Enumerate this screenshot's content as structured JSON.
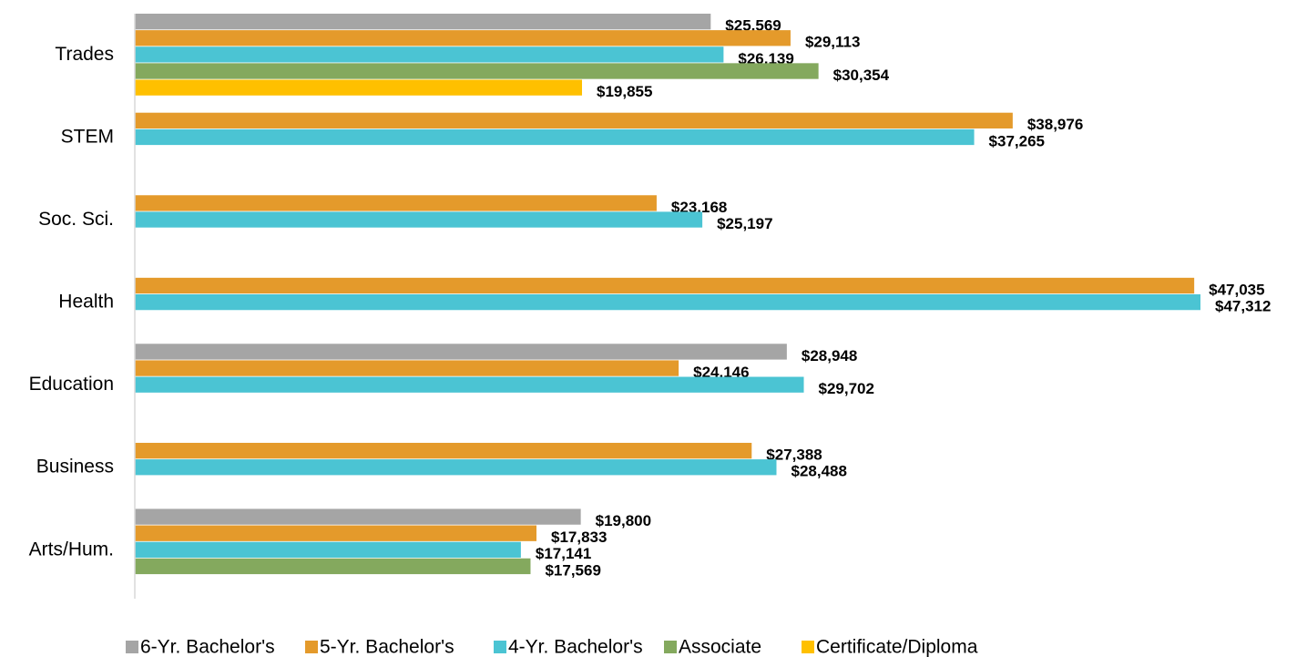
{
  "chart_data": {
    "type": "bar",
    "orientation": "horizontal",
    "categories": [
      "Trades",
      "STEM",
      "Soc. Sci.",
      "Health",
      "Education",
      "Business",
      "Arts/Hum."
    ],
    "series": [
      {
        "name": "6-Yr. Bachelor's",
        "color": "#a5a5a5",
        "values": [
          25569,
          null,
          null,
          null,
          28948,
          null,
          19800
        ],
        "value_labels": [
          "$25,569",
          null,
          null,
          null,
          "$28,948",
          null,
          "$19,800"
        ]
      },
      {
        "name": "5-Yr. Bachelor's",
        "color": "#e49a2b",
        "values": [
          29113,
          38976,
          23168,
          47035,
          24146,
          27388,
          17833
        ],
        "value_labels": [
          "$29,113",
          "$38,976",
          "$23,168",
          "$47,035",
          "$24,146",
          "$27,388",
          "$17,833"
        ]
      },
      {
        "name": "4-Yr. Bachelor's",
        "color": "#4bc4d3",
        "values": [
          26139,
          37265,
          25197,
          47312,
          29702,
          28488,
          17141
        ],
        "value_labels": [
          "$26,139",
          "$37,265",
          "$25,197",
          "$47,312",
          "$29,702",
          "$28,488",
          "$17,141"
        ]
      },
      {
        "name": "Associate",
        "color": "#84a95e",
        "values": [
          30354,
          null,
          null,
          null,
          null,
          null,
          17569
        ],
        "value_labels": [
          "$30,354",
          null,
          null,
          null,
          null,
          null,
          "$17,569"
        ]
      },
      {
        "name": "Certificate/Diploma",
        "color": "#ffc000",
        "values": [
          19855,
          null,
          null,
          null,
          null,
          null,
          null
        ],
        "value_labels": [
          "$19,855",
          null,
          null,
          null,
          null,
          null,
          null
        ]
      }
    ],
    "legend": "bottom"
  }
}
